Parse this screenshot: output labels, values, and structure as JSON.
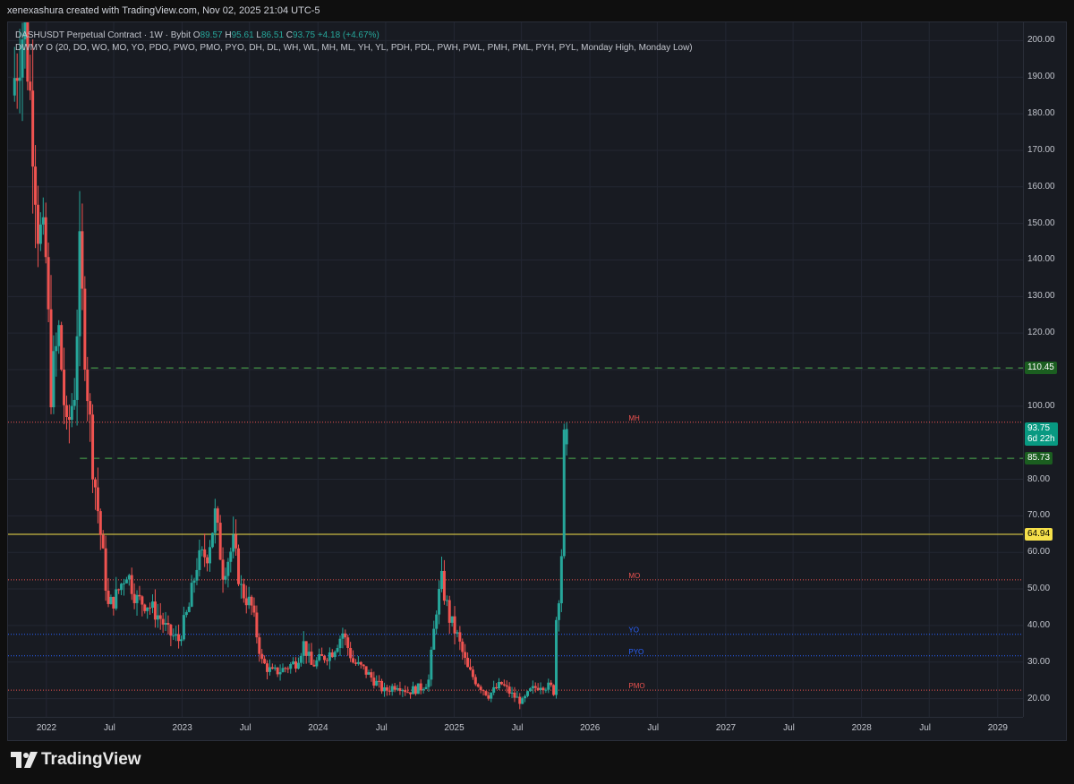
{
  "header": {
    "attribution": "xenexashura created with TradingView.com, Nov 02, 2025 21:04 UTC-5"
  },
  "legend": {
    "line1_prefix": "DASHUSDT Perpetual Contract · 1W · Bybit",
    "o_label": "O",
    "o_value": "89.57",
    "h_label": "H",
    "h_value": "95.61",
    "l_label": "L",
    "l_value": "86.51",
    "c_label": "C",
    "c_value": "93.75",
    "change": "+4.18 (+4.67%)",
    "line2": "DWMY O (20, DO, WO, MO, YO, PDO, PWO, PMO, PYO, DH, DL, WH, WL, MH, ML, YH, YL, PDH, PDL, PWH, PWL, PMH, PML, PYH, PYL, Monday High, Monday Low)"
  },
  "footer": {
    "brand": "TradingView"
  },
  "colors": {
    "up": "#26a69a",
    "down": "#ef5350",
    "yellow": "#f5e04a",
    "green_dash": "#4caf50",
    "blue": "#2962ff",
    "red_label": "#ef5350"
  },
  "chart_data": {
    "type": "candlestick",
    "symbol": "DASHUSDT",
    "timeframe": "1W",
    "ylim": [
      15,
      205
    ],
    "xlim": [
      "2021-09-20",
      "2029-03-10"
    ],
    "y_ticks": [
      "200.00",
      "190.00",
      "180.00",
      "170.00",
      "160.00",
      "150.00",
      "140.00",
      "130.00",
      "120.00",
      "110.00",
      "100.00",
      "80.00",
      "70.00",
      "60.00",
      "50.00",
      "40.00",
      "30.00",
      "20.00"
    ],
    "x_ticks": [
      {
        "label": "2022",
        "date": "2022-01-01"
      },
      {
        "label": "Jul",
        "date": "2022-07-01"
      },
      {
        "label": "2023",
        "date": "2023-01-01"
      },
      {
        "label": "Jul",
        "date": "2023-07-01"
      },
      {
        "label": "2024",
        "date": "2024-01-01"
      },
      {
        "label": "Jul",
        "date": "2024-07-01"
      },
      {
        "label": "2025",
        "date": "2025-01-01"
      },
      {
        "label": "Jul",
        "date": "2025-07-01"
      },
      {
        "label": "2026",
        "date": "2026-01-01"
      },
      {
        "label": "Jul",
        "date": "2026-07-01"
      },
      {
        "label": "2027",
        "date": "2027-01-01"
      },
      {
        "label": "Jul",
        "date": "2027-07-01"
      },
      {
        "label": "2028",
        "date": "2028-01-01"
      },
      {
        "label": "Jul",
        "date": "2028-07-01"
      },
      {
        "label": "2029",
        "date": "2029-01-01"
      }
    ],
    "price_path": [
      [
        "2021-10-04",
        185
      ],
      [
        "2021-10-25",
        200
      ],
      [
        "2021-11-08",
        205
      ],
      [
        "2021-11-29",
        175
      ],
      [
        "2021-12-13",
        150
      ],
      [
        "2022-01-03",
        140
      ],
      [
        "2022-01-17",
        105
      ],
      [
        "2022-02-07",
        120
      ],
      [
        "2022-02-28",
        92
      ],
      [
        "2022-03-21",
        105
      ],
      [
        "2022-04-04",
        140
      ],
      [
        "2022-04-25",
        105
      ],
      [
        "2022-05-09",
        85
      ],
      [
        "2022-05-30",
        65
      ],
      [
        "2022-06-20",
        45
      ],
      [
        "2022-07-11",
        48
      ],
      [
        "2022-08-08",
        55
      ],
      [
        "2022-09-05",
        47
      ],
      [
        "2022-10-03",
        46
      ],
      [
        "2022-11-07",
        42
      ],
      [
        "2022-11-28",
        38
      ],
      [
        "2022-12-26",
        36
      ],
      [
        "2023-01-23",
        45
      ],
      [
        "2023-02-13",
        57
      ],
      [
        "2023-03-13",
        60
      ],
      [
        "2023-04-03",
        70
      ],
      [
        "2023-04-24",
        55
      ],
      [
        "2023-05-22",
        62
      ],
      [
        "2023-06-12",
        50
      ],
      [
        "2023-07-10",
        45
      ],
      [
        "2023-08-07",
        30
      ],
      [
        "2023-09-04",
        27
      ],
      [
        "2023-10-02",
        28
      ],
      [
        "2023-11-06",
        30
      ],
      [
        "2023-11-27",
        35
      ],
      [
        "2023-12-18",
        29
      ],
      [
        "2024-01-15",
        31
      ],
      [
        "2024-02-12",
        33
      ],
      [
        "2024-03-11",
        38
      ],
      [
        "2024-04-08",
        30
      ],
      [
        "2024-05-06",
        28
      ],
      [
        "2024-06-03",
        25
      ],
      [
        "2024-07-01",
        22
      ],
      [
        "2024-08-05",
        24
      ],
      [
        "2024-09-02",
        22
      ],
      [
        "2024-10-07",
        23
      ],
      [
        "2024-10-28",
        25
      ],
      [
        "2024-11-18",
        45
      ],
      [
        "2024-12-02",
        52
      ],
      [
        "2024-12-23",
        42
      ],
      [
        "2025-01-13",
        37
      ],
      [
        "2025-02-10",
        28
      ],
      [
        "2025-03-10",
        24
      ],
      [
        "2025-04-07",
        21
      ],
      [
        "2025-05-12",
        24
      ],
      [
        "2025-06-09",
        21
      ],
      [
        "2025-07-07",
        19
      ],
      [
        "2025-07-28",
        22
      ],
      [
        "2025-08-25",
        24
      ],
      [
        "2025-09-22",
        23
      ],
      [
        "2025-09-29",
        22
      ],
      [
        "2025-10-06",
        42
      ],
      [
        "2025-10-13",
        49
      ],
      [
        "2025-10-20",
        60
      ],
      [
        "2025-10-27",
        89.57
      ],
      [
        "2025-11-03",
        93.75
      ]
    ],
    "last_bar": {
      "open": 89.57,
      "high": 95.61,
      "low": 86.51,
      "close": 93.75
    },
    "levels": [
      {
        "label": "MH",
        "value": 95.61,
        "color": "#ef5350",
        "style": "dotted",
        "from": "2021-09-20",
        "label_date": "2026-04-15"
      },
      {
        "label": "MO",
        "value": 52.5,
        "color": "#ef5350",
        "style": "dotted",
        "from": "2021-09-20",
        "label_date": "2026-04-15"
      },
      {
        "label": "YO",
        "value": 37.6,
        "color": "#2962ff",
        "style": "dotted",
        "from": "2021-09-20",
        "label_date": "2026-04-15"
      },
      {
        "label": "PYO",
        "value": 31.7,
        "color": "#2962ff",
        "style": "dotted",
        "from": "2021-09-20",
        "label_date": "2026-04-15"
      },
      {
        "label": "PMO",
        "value": 22.3,
        "color": "#ef5350",
        "style": "dotted",
        "from": "2021-09-20",
        "label_date": "2026-04-15"
      },
      {
        "label": "",
        "value": 64.94,
        "color": "#f5e04a",
        "style": "solid",
        "from": "2021-09-20",
        "label_date": ""
      },
      {
        "label": "",
        "value": 110.45,
        "color": "#4caf50",
        "style": "dashed",
        "from": "2022-05-01",
        "label_date": ""
      },
      {
        "label": "",
        "value": 85.73,
        "color": "#4caf50",
        "style": "dashed",
        "from": "2022-04-01",
        "label_date": ""
      }
    ],
    "price_badges": [
      {
        "text": "110.45",
        "value": 110.45,
        "bg": "#1b5e20",
        "fg": "#ffffff"
      },
      {
        "text": "93.75",
        "sub": "6d 22h",
        "value": 93.75,
        "bg": "#089981",
        "fg": "#ffffff"
      },
      {
        "text": "85.73",
        "value": 85.73,
        "bg": "#1b5e20",
        "fg": "#ffffff"
      },
      {
        "text": "64.94",
        "value": 64.94,
        "bg": "#f5e04a",
        "fg": "#000000"
      }
    ]
  }
}
